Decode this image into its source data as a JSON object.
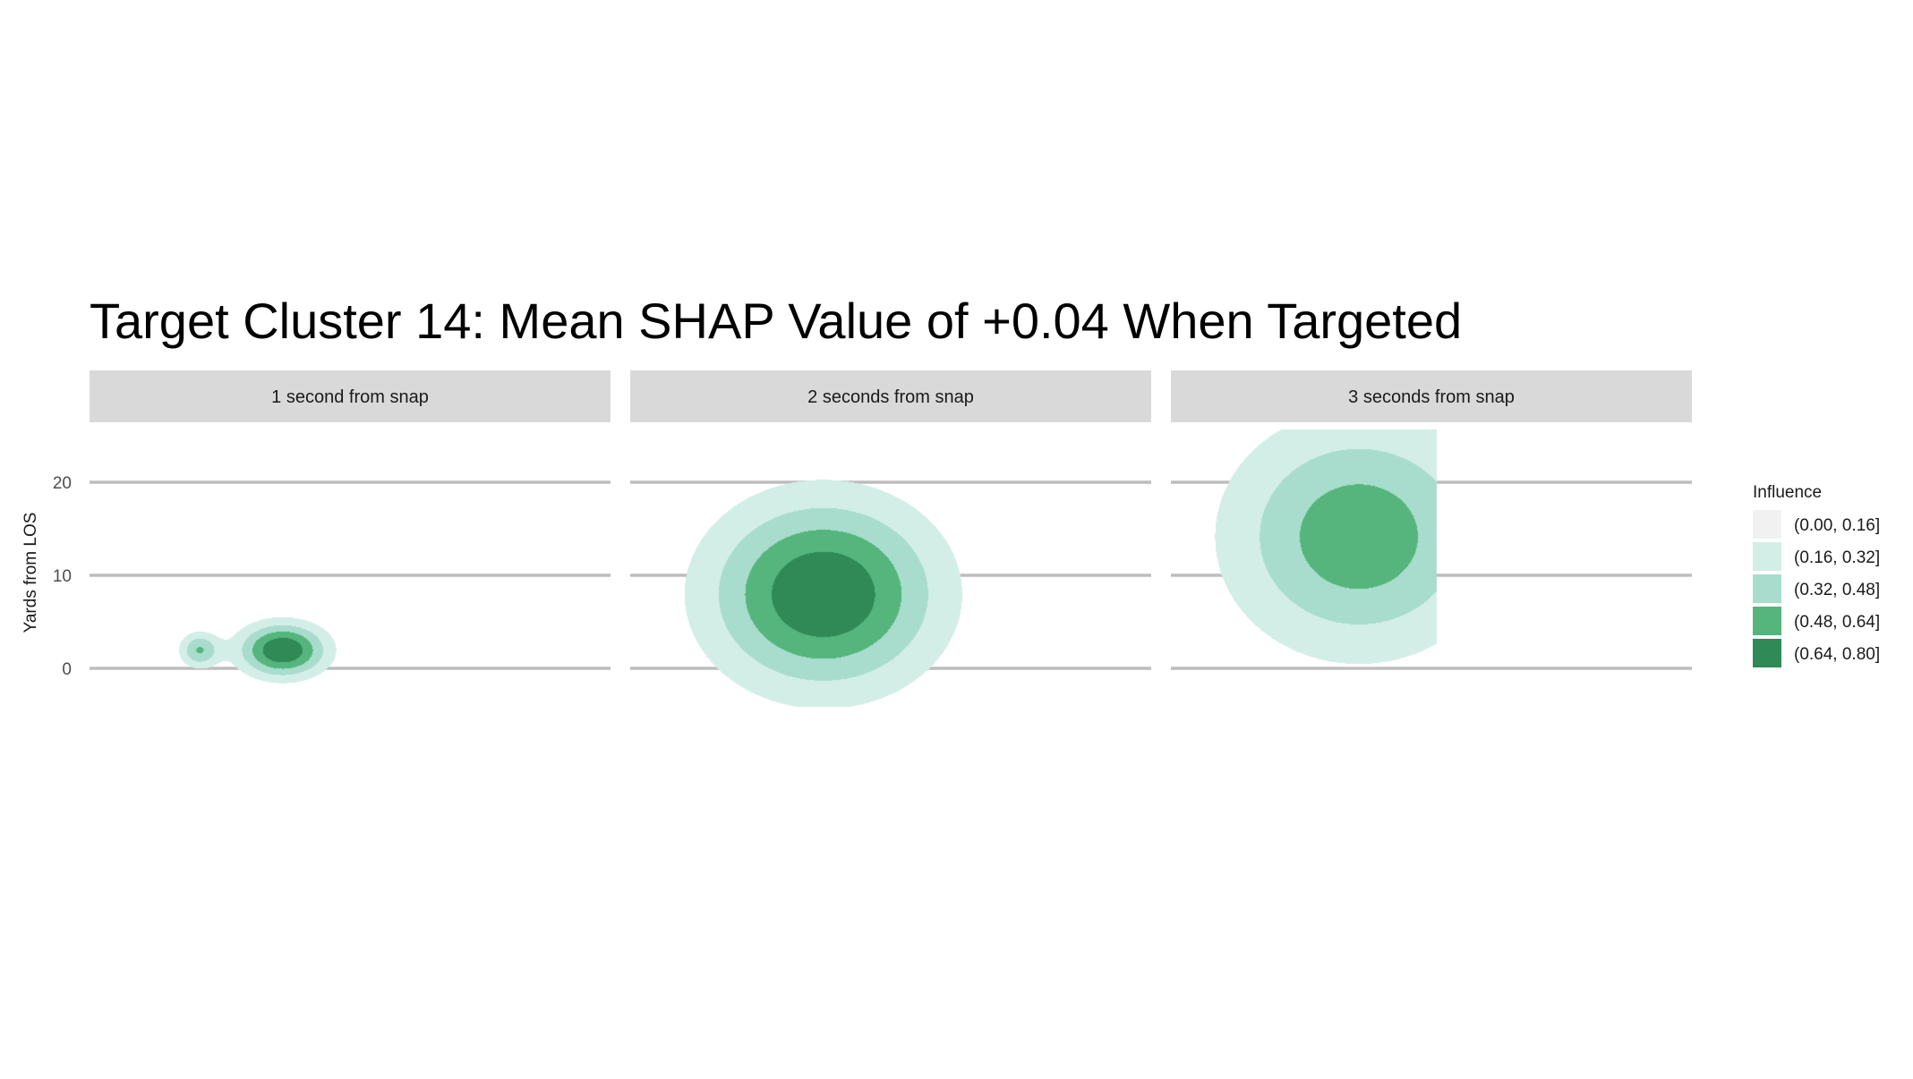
{
  "chart_data": {
    "type": "contour",
    "title": "Target Cluster 14: Mean SHAP Value of +0.04 When Targeted",
    "ylabel": "Yards from LOS",
    "xlabel": "",
    "y_ticks": [
      0,
      10,
      20
    ],
    "ylim": [
      -3,
      22
    ],
    "grid": "horizontal major lines only",
    "facets": [
      {
        "label": "1 second from snap",
        "density_peaks": [
          {
            "x_frac": 0.37,
            "y": 2,
            "sx": 0.081,
            "sy": 2.8,
            "weight": 0.8
          },
          {
            "x_frac": 0.21,
            "y": 2,
            "sx": 0.037,
            "sy": 1.85,
            "weight": 0.48
          }
        ]
      },
      {
        "label": "2 seconds from snap",
        "density_peaks": [
          {
            "x_frac": 0.37,
            "y": 8,
            "sx": 0.21,
            "sy": 9.7,
            "weight": 0.8
          }
        ]
      },
      {
        "label": "3 seconds from snap",
        "density_peaks": [
          {
            "x_frac": 0.36,
            "y": 14.2,
            "sx": 0.24,
            "sy": 11.9,
            "weight": 0.6
          }
        ],
        "clip_x_frac": 0.51
      }
    ],
    "legend": {
      "title": "Influence",
      "placement": "right",
      "entries": [
        {
          "label": "(0.00, 0.16]",
          "color": "#f1f1f1",
          "lo": 0.0,
          "hi": 0.16
        },
        {
          "label": "(0.16, 0.32]",
          "color": "#d3eee6",
          "lo": 0.16,
          "hi": 0.32
        },
        {
          "label": "(0.32, 0.48]",
          "color": "#a8ddce",
          "lo": 0.32,
          "hi": 0.48
        },
        {
          "label": "(0.48, 0.64]",
          "color": "#55b57d",
          "lo": 0.48,
          "hi": 0.64
        },
        {
          "label": "(0.64, 0.80]",
          "color": "#2f8a56",
          "lo": 0.64,
          "hi": 0.8
        }
      ]
    }
  }
}
